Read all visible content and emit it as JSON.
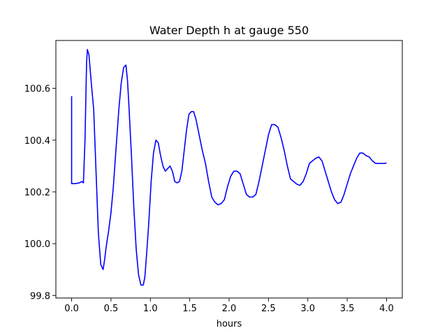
{
  "chart_data": {
    "type": "line",
    "title": "Water Depth h at gauge 550",
    "xlabel": "hours",
    "ylabel": "",
    "xlim": [
      -0.2,
      4.2
    ],
    "ylim": [
      99.79,
      100.785
    ],
    "xticks": [
      0.0,
      0.5,
      1.0,
      1.5,
      2.0,
      2.5,
      3.0,
      3.5,
      4.0
    ],
    "xtick_labels": [
      "0.0",
      "0.5",
      "1.0",
      "1.5",
      "2.0",
      "2.5",
      "3.0",
      "3.5",
      "4.0"
    ],
    "yticks": [
      99.8,
      100.0,
      100.2,
      100.4,
      100.6
    ],
    "ytick_labels": [
      "99.8",
      "100.0",
      "100.2",
      "100.4",
      "100.6"
    ],
    "grid": false,
    "series": [
      {
        "color": "#0000ff",
        "x": [
          0.0,
          0.0,
          0.0,
          0.05,
          0.1,
          0.13,
          0.15,
          0.17,
          0.19,
          0.2,
          0.22,
          0.25,
          0.28,
          0.31,
          0.34,
          0.37,
          0.4,
          0.42,
          0.44,
          0.47,
          0.5,
          0.53,
          0.56,
          0.6,
          0.63,
          0.66,
          0.69,
          0.71,
          0.73,
          0.76,
          0.79,
          0.82,
          0.85,
          0.88,
          0.91,
          0.93,
          0.95,
          0.98,
          1.01,
          1.04,
          1.07,
          1.1,
          1.13,
          1.16,
          1.19,
          1.22,
          1.25,
          1.28,
          1.31,
          1.34,
          1.37,
          1.4,
          1.43,
          1.46,
          1.49,
          1.52,
          1.55,
          1.58,
          1.62,
          1.66,
          1.7,
          1.74,
          1.78,
          1.82,
          1.86,
          1.9,
          1.94,
          1.98,
          2.02,
          2.06,
          2.1,
          2.14,
          2.18,
          2.22,
          2.26,
          2.3,
          2.34,
          2.38,
          2.42,
          2.46,
          2.5,
          2.54,
          2.58,
          2.62,
          2.66,
          2.7,
          2.74,
          2.78,
          2.82,
          2.86,
          2.9,
          2.94,
          2.98,
          3.02,
          3.06,
          3.1,
          3.14,
          3.18,
          3.22,
          3.26,
          3.3,
          3.34,
          3.38,
          3.42,
          3.46,
          3.5,
          3.54,
          3.58,
          3.62,
          3.66,
          3.7,
          3.74,
          3.78,
          3.82,
          3.86,
          3.9,
          3.94,
          3.98,
          4.0
        ],
        "y": [
          100.57,
          100.57,
          100.232,
          100.232,
          100.235,
          100.24,
          100.235,
          100.4,
          100.7,
          100.75,
          100.73,
          100.62,
          100.52,
          100.28,
          100.04,
          99.92,
          99.9,
          99.94,
          99.99,
          100.05,
          100.12,
          100.22,
          100.35,
          100.52,
          100.62,
          100.68,
          100.69,
          100.63,
          100.52,
          100.34,
          100.14,
          99.98,
          99.88,
          99.84,
          99.84,
          99.87,
          99.95,
          100.08,
          100.24,
          100.35,
          100.4,
          100.39,
          100.34,
          100.3,
          100.28,
          100.29,
          100.3,
          100.28,
          100.24,
          100.235,
          100.24,
          100.28,
          100.36,
          100.44,
          100.5,
          100.51,
          100.51,
          100.48,
          100.42,
          100.36,
          100.31,
          100.24,
          100.18,
          100.16,
          100.15,
          100.155,
          100.17,
          100.22,
          100.26,
          100.28,
          100.28,
          100.27,
          100.23,
          100.19,
          100.18,
          100.18,
          100.19,
          100.24,
          100.3,
          100.36,
          100.42,
          100.46,
          100.46,
          100.45,
          100.41,
          100.36,
          100.3,
          100.25,
          100.24,
          100.23,
          100.225,
          100.24,
          100.27,
          100.31,
          100.32,
          100.33,
          100.335,
          100.32,
          100.28,
          100.24,
          100.2,
          100.17,
          100.155,
          100.16,
          100.19,
          100.23,
          100.27,
          100.3,
          100.33,
          100.35,
          100.35,
          100.34,
          100.335,
          100.32,
          100.31,
          100.31,
          100.31,
          100.31,
          100.312
        ]
      }
    ]
  }
}
